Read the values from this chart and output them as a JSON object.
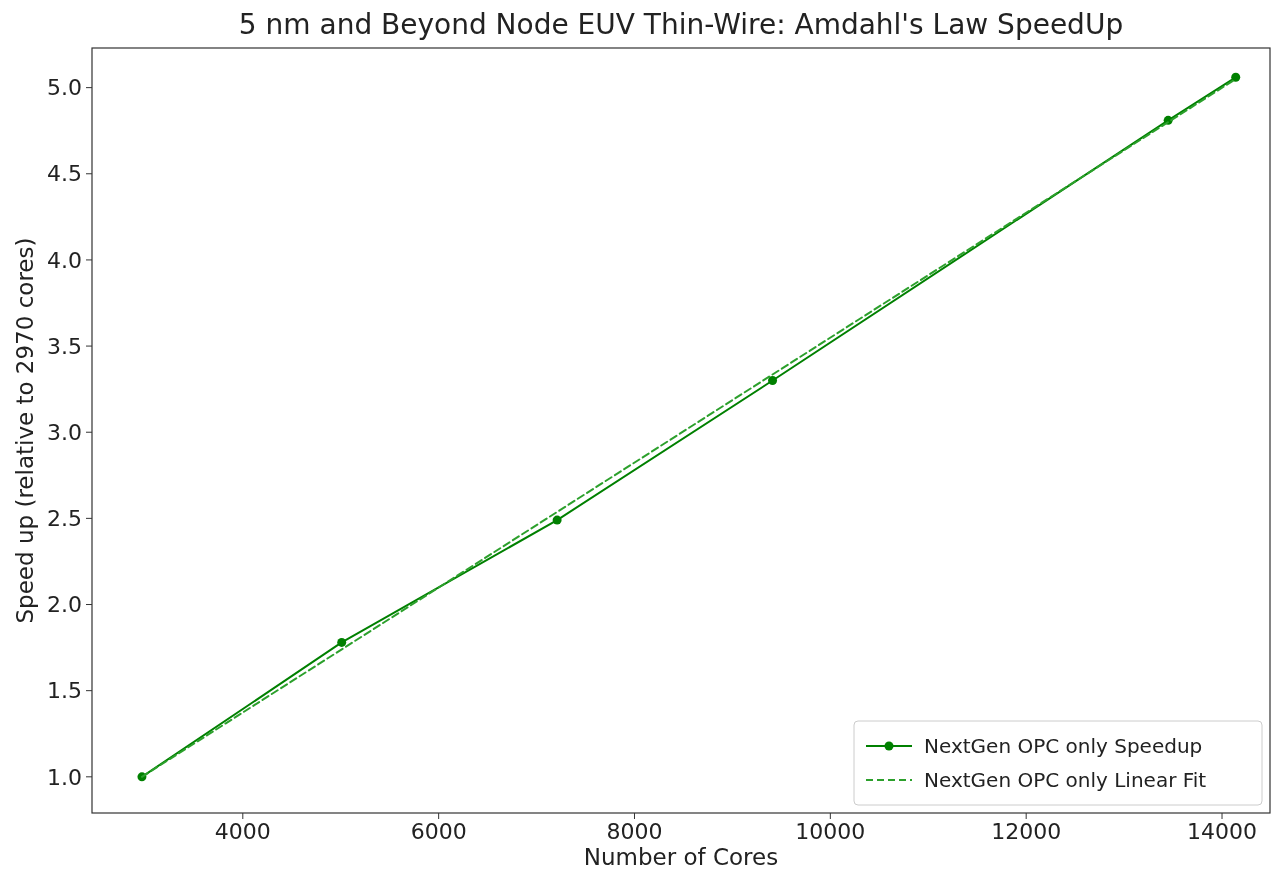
{
  "chart_data": {
    "type": "line",
    "title": "5 nm and Beyond Node EUV Thin-Wire: Amdahl's Law SpeedUp",
    "xlabel": "Number of Cores",
    "ylabel": "Speed up (relative to 2970 cores)",
    "xlim": [
      2460,
      14490
    ],
    "xticks": [
      4000,
      6000,
      8000,
      10000,
      12000,
      14000
    ],
    "ylim": [
      0.79,
      5.23
    ],
    "yticks": [
      {
        "value": 1,
        "label": "1.0"
      },
      {
        "value": 1.5,
        "label": "1.5"
      },
      {
        "value": 2,
        "label": "2.0"
      },
      {
        "value": 2.5,
        "label": "2.5"
      },
      {
        "value": 3,
        "label": "3.0"
      },
      {
        "value": 3.5,
        "label": "3.5"
      },
      {
        "value": 4,
        "label": "4.0"
      },
      {
        "value": 4.5,
        "label": "4.5"
      },
      {
        "value": 5,
        "label": "5.0"
      }
    ],
    "series": [
      {
        "name": "NextGen OPC only Speedup",
        "color": "#008000",
        "x": [
          2970,
          5010,
          7210,
          9410,
          13450,
          14140
        ],
        "values": [
          1.0,
          1.78,
          2.49,
          3.3,
          4.81,
          5.06
        ],
        "marker": "circle",
        "line_style": "solid"
      },
      {
        "name": "NextGen OPC only Linear Fit",
        "color": "#2ca02c",
        "x": [
          2970,
          14140
        ],
        "values": [
          1.0,
          5.05
        ],
        "marker": "none",
        "line_style": "dashed"
      }
    ],
    "grid": false,
    "legend": "bottom right"
  }
}
